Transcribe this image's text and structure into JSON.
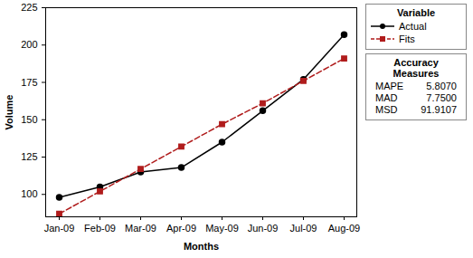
{
  "chart_data": {
    "type": "line",
    "x_label": "Months",
    "y_label": "Volume",
    "categories": [
      "Jan-09",
      "Feb-09",
      "Mar-09",
      "Apr-09",
      "May-09",
      "Jun-09",
      "Jul-09",
      "Aug-09"
    ],
    "series": [
      {
        "name": "Actual",
        "color": "#000000",
        "marker": "circle",
        "line_style": "solid",
        "values": [
          98,
          105,
          115,
          118,
          135,
          156,
          177,
          207
        ]
      },
      {
        "name": "Fits",
        "color": "#b01c1c",
        "marker": "square",
        "line_style": "dashed",
        "values": [
          87,
          102,
          117,
          132,
          147,
          161,
          176,
          191
        ]
      }
    ],
    "ylim": [
      85,
      225
    ],
    "yticks": [
      100,
      125,
      150,
      175,
      200,
      225
    ],
    "grid": false,
    "legend": "right",
    "legend_title": "Variable",
    "accuracy_measures": {
      "title": "Accuracy Measures",
      "items": [
        {
          "name": "MAPE",
          "value": 5.807,
          "label": "5.8070"
        },
        {
          "name": "MAD",
          "value": 7.75,
          "label": "7.7500"
        },
        {
          "name": "MSD",
          "value": 91.9107,
          "label": "91.9107"
        }
      ]
    }
  }
}
